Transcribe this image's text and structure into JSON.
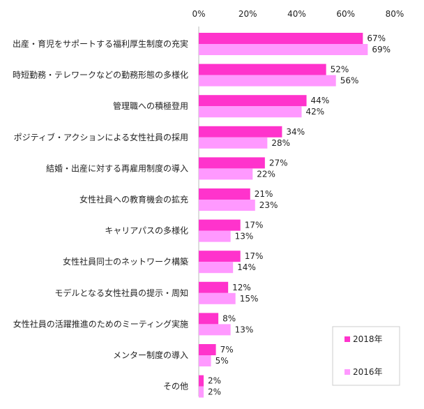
{
  "chart_data": {
    "type": "bar",
    "orientation": "horizontal",
    "categories": [
      "出産・育児をサポートする福利厚生制度の充実",
      "時短勤務・テレワークなどの勤務形態の多様化",
      "管理職への積極登用",
      "ポジティブ・アクションによる女性社員の採用",
      "結婚・出産に対する再雇用制度の導入",
      "女性社員への教育機会の拡充",
      "キャリアパスの多様化",
      "女性社員同士のネットワーク構築",
      "モデルとなる女性社員の提示・周知",
      "女性社員の活躍推進のためのミーティング実施",
      "メンター制度の導入",
      "その他"
    ],
    "series": [
      {
        "name": "2018年",
        "color": "#ff33cc",
        "values": [
          67,
          52,
          44,
          34,
          27,
          21,
          17,
          17,
          12,
          8,
          7,
          2
        ]
      },
      {
        "name": "2016年",
        "color": "#ff99ff",
        "values": [
          69,
          56,
          42,
          28,
          22,
          23,
          13,
          14,
          15,
          13,
          5,
          2
        ]
      }
    ],
    "xlim": [
      0,
      80
    ],
    "xticks": [
      "0%",
      "20%",
      "40%",
      "60%",
      "80%"
    ],
    "value_suffix": "%",
    "legend_position": "bottom-right",
    "grid": false
  }
}
